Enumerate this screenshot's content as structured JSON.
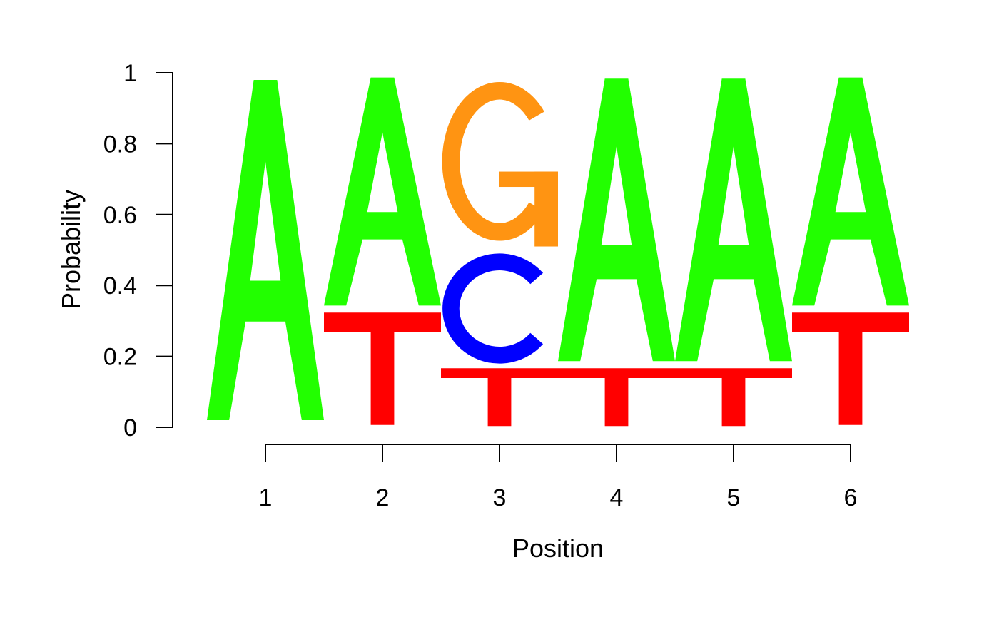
{
  "chart_data": {
    "type": "sequence-logo",
    "xlabel": "Position",
    "ylabel": "Probability",
    "ylim": [
      0,
      1
    ],
    "y_ticks": [
      0,
      0.2,
      0.4,
      0.6,
      0.8,
      1
    ],
    "y_tick_labels": [
      "0",
      "0.2",
      "0.4",
      "0.6",
      "0.8",
      "1"
    ],
    "positions": [
      "1",
      "2",
      "3",
      "4",
      "5",
      "6"
    ],
    "letter_colors": {
      "A": "#22ff00",
      "C": "#0000ff",
      "G": "#ff9412",
      "T": "#ff0000"
    },
    "columns": [
      {
        "position": "1",
        "stack": [
          {
            "letter": "A",
            "p": 1.0
          }
        ]
      },
      {
        "position": "2",
        "stack": [
          {
            "letter": "T",
            "p": 0.33
          },
          {
            "letter": "A",
            "p": 0.67
          }
        ]
      },
      {
        "position": "3",
        "stack": [
          {
            "letter": "T",
            "p": 0.17
          },
          {
            "letter": "C",
            "p": 0.33
          },
          {
            "letter": "G",
            "p": 0.5
          }
        ]
      },
      {
        "position": "4",
        "stack": [
          {
            "letter": "T",
            "p": 0.17
          },
          {
            "letter": "A",
            "p": 0.83
          }
        ]
      },
      {
        "position": "5",
        "stack": [
          {
            "letter": "T",
            "p": 0.17
          },
          {
            "letter": "A",
            "p": 0.83
          }
        ]
      },
      {
        "position": "6",
        "stack": [
          {
            "letter": "T",
            "p": 0.33
          },
          {
            "letter": "A",
            "p": 0.67
          }
        ]
      }
    ]
  }
}
